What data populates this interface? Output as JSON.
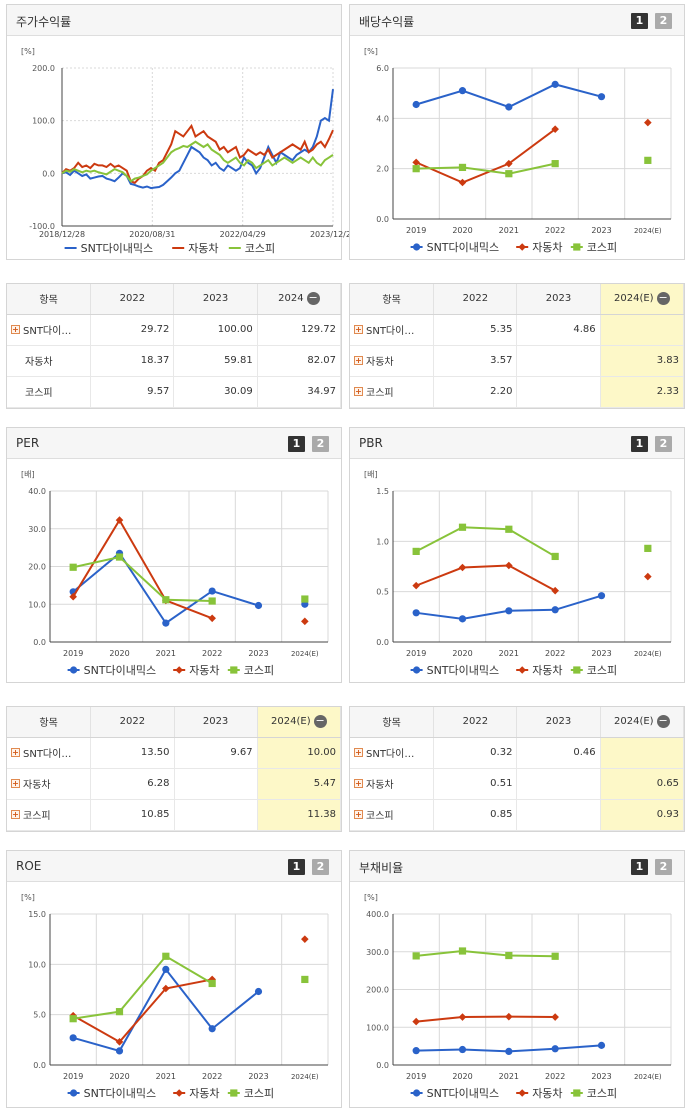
{
  "colors": {
    "snt": "#2a62c9",
    "auto": "#cc3a10",
    "kospi": "#88c33a",
    "grid": "#d9d9d9",
    "axis": "#444444"
  },
  "panels": {
    "stock_return": {
      "title": "주가수익률"
    },
    "dividend": {
      "title": "배당수익률",
      "tab1": "1",
      "tab2": "2"
    },
    "per": {
      "title": "PER",
      "tab1": "1",
      "tab2": "2"
    },
    "pbr": {
      "title": "PBR",
      "tab1": "1",
      "tab2": "2"
    },
    "roe": {
      "title": "ROE",
      "tab1": "1",
      "tab2": "2"
    },
    "debt": {
      "title": "부채비율",
      "tab1": "1",
      "tab2": "2"
    }
  },
  "tables": {
    "return_table": {
      "header_label": "항목",
      "columns": [
        "2022",
        "2023",
        "2024"
      ],
      "rows": [
        {
          "label": "SNT다이…",
          "expandable": true,
          "values": [
            "29.72",
            "100.00",
            "129.72"
          ]
        },
        {
          "label": "자동차",
          "expandable": false,
          "values": [
            "18.37",
            "59.81",
            "82.07"
          ]
        },
        {
          "label": "코스피",
          "expandable": false,
          "values": [
            "9.57",
            "30.09",
            "34.97"
          ]
        }
      ]
    },
    "dividend_table": {
      "header_label": "항목",
      "columns": [
        "2022",
        "2023",
        "2024(E)"
      ],
      "rows": [
        {
          "label": "SNT다이…",
          "expandable": true,
          "values": [
            "5.35",
            "4.86",
            ""
          ]
        },
        {
          "label": "자동차",
          "expandable": true,
          "values": [
            "3.57",
            "",
            "3.83"
          ]
        },
        {
          "label": "코스피",
          "expandable": true,
          "values": [
            "2.20",
            "",
            "2.33"
          ]
        }
      ]
    },
    "per_table": {
      "header_label": "항목",
      "columns": [
        "2022",
        "2023",
        "2024(E)"
      ],
      "rows": [
        {
          "label": "SNT다이…",
          "expandable": true,
          "values": [
            "13.50",
            "9.67",
            "10.00"
          ]
        },
        {
          "label": "자동차",
          "expandable": true,
          "values": [
            "6.28",
            "",
            "5.47"
          ]
        },
        {
          "label": "코스피",
          "expandable": true,
          "values": [
            "10.85",
            "",
            "11.38"
          ]
        }
      ]
    },
    "pbr_table": {
      "header_label": "항목",
      "columns": [
        "2022",
        "2023",
        "2024(E)"
      ],
      "rows": [
        {
          "label": "SNT다이…",
          "expandable": true,
          "values": [
            "0.32",
            "0.46",
            ""
          ]
        },
        {
          "label": "자동차",
          "expandable": true,
          "values": [
            "0.51",
            "",
            "0.65"
          ]
        },
        {
          "label": "코스피",
          "expandable": true,
          "values": [
            "0.85",
            "",
            "0.93"
          ]
        }
      ]
    }
  },
  "chart_data": [
    {
      "id": "stock_return",
      "type": "line",
      "unit": "[%]",
      "ylim": [
        -100,
        200
      ],
      "yticks": [
        "200.0",
        "100.0",
        "0.0",
        "-100.0"
      ],
      "x_tick_labels": [
        "2018/12/28",
        "2020/08/31",
        "2022/04/29",
        "2023/12/28"
      ],
      "legend": [
        "SNT다이내믹스",
        "자동차",
        "코스피"
      ],
      "series": [
        {
          "name": "SNT다이내믹스",
          "values": [
            0,
            2,
            -3,
            5,
            0,
            -5,
            -2,
            -10,
            -8,
            -6,
            -5,
            -10,
            -12,
            -15,
            -8,
            0,
            -5,
            -20,
            -22,
            -25,
            -27,
            -25,
            -28,
            -27,
            -26,
            -22,
            -15,
            -8,
            0,
            5,
            20,
            35,
            50,
            45,
            40,
            30,
            25,
            15,
            20,
            10,
            5,
            15,
            10,
            5,
            10,
            30,
            20,
            15,
            0,
            10,
            30,
            50,
            35,
            20,
            40,
            35,
            30,
            25,
            35,
            40,
            45,
            40,
            50,
            70,
            100,
            105,
            100,
            160
          ]
        },
        {
          "name": "자동차",
          "values": [
            0,
            8,
            5,
            10,
            20,
            12,
            15,
            10,
            18,
            15,
            15,
            12,
            18,
            12,
            15,
            10,
            5,
            -15,
            -18,
            -10,
            -5,
            5,
            10,
            5,
            20,
            25,
            40,
            55,
            80,
            75,
            70,
            80,
            90,
            70,
            75,
            80,
            70,
            65,
            60,
            45,
            50,
            40,
            45,
            50,
            30,
            35,
            45,
            40,
            35,
            40,
            35,
            45,
            30,
            35,
            40,
            45,
            50,
            55,
            50,
            45,
            60,
            40,
            45,
            55,
            60,
            50,
            65,
            82
          ]
        },
        {
          "name": "코스피",
          "values": [
            0,
            5,
            3,
            8,
            5,
            2,
            5,
            3,
            5,
            2,
            0,
            -2,
            3,
            8,
            5,
            2,
            -5,
            -15,
            -10,
            -8,
            -5,
            -2,
            5,
            10,
            15,
            20,
            30,
            40,
            45,
            48,
            52,
            50,
            55,
            60,
            55,
            50,
            55,
            45,
            40,
            35,
            25,
            20,
            25,
            30,
            20,
            15,
            25,
            20,
            10,
            15,
            20,
            25,
            15,
            20,
            25,
            30,
            25,
            20,
            25,
            30,
            25,
            20,
            30,
            20,
            15,
            25,
            30,
            35
          ]
        }
      ]
    },
    {
      "id": "dividend",
      "type": "line",
      "unit": "[%]",
      "ylim": [
        0,
        6
      ],
      "yticks": [
        "6.0",
        "4.0",
        "2.0",
        "0.0"
      ],
      "categories": [
        "2019",
        "2020",
        "2021",
        "2022",
        "2023",
        "2024(E)"
      ],
      "legend": [
        "SNT다이내믹스",
        "자동차",
        "코스피"
      ],
      "series": [
        {
          "name": "SNT다이내믹스",
          "values": [
            4.55,
            5.1,
            4.45,
            5.35,
            4.86,
            null
          ]
        },
        {
          "name": "자동차",
          "values": [
            2.25,
            1.45,
            2.2,
            3.57,
            null,
            3.83
          ]
        },
        {
          "name": "코스피",
          "values": [
            2.0,
            2.05,
            1.8,
            2.2,
            null,
            2.33
          ]
        }
      ]
    },
    {
      "id": "per",
      "type": "line",
      "unit": "[배]",
      "ylim": [
        0,
        40
      ],
      "yticks": [
        "40.0",
        "30.0",
        "20.0",
        "10.0",
        "0.0"
      ],
      "categories": [
        "2019",
        "2020",
        "2021",
        "2022",
        "2023",
        "2024(E)"
      ],
      "legend": [
        "SNT다이내믹스",
        "자동차",
        "코스피"
      ],
      "series": [
        {
          "name": "SNT다이내믹스",
          "values": [
            13.3,
            23.5,
            5.0,
            13.5,
            9.67,
            10.0
          ]
        },
        {
          "name": "자동차",
          "values": [
            12.0,
            32.3,
            11.0,
            6.28,
            null,
            5.47
          ]
        },
        {
          "name": "코스피",
          "values": [
            19.8,
            22.5,
            11.2,
            10.85,
            null,
            11.38
          ]
        }
      ]
    },
    {
      "id": "pbr",
      "type": "line",
      "unit": "[배]",
      "ylim": [
        0,
        1.5
      ],
      "yticks": [
        "1.5",
        "1.0",
        "0.5",
        "0.0"
      ],
      "categories": [
        "2019",
        "2020",
        "2021",
        "2022",
        "2023",
        "2024(E)"
      ],
      "legend": [
        "SNT다이내믹스",
        "자동차",
        "코스피"
      ],
      "series": [
        {
          "name": "SNT다이내믹스",
          "values": [
            0.29,
            0.23,
            0.31,
            0.32,
            0.46,
            null
          ]
        },
        {
          "name": "자동차",
          "values": [
            0.56,
            0.74,
            0.76,
            0.51,
            null,
            0.65
          ]
        },
        {
          "name": "코스피",
          "values": [
            0.9,
            1.14,
            1.12,
            0.85,
            null,
            0.93
          ]
        }
      ]
    },
    {
      "id": "roe",
      "type": "line",
      "unit": "[%]",
      "ylim": [
        0,
        15
      ],
      "yticks": [
        "15.0",
        "10.0",
        "5.0",
        "0.0"
      ],
      "categories": [
        "2019",
        "2020",
        "2021",
        "2022",
        "2023",
        "2024(E)"
      ],
      "legend": [
        "SNT다이내믹스",
        "자동차",
        "코스피"
      ],
      "series": [
        {
          "name": "SNT다이내믹스",
          "values": [
            2.7,
            1.4,
            9.5,
            3.6,
            7.3,
            null
          ]
        },
        {
          "name": "자동차",
          "values": [
            4.9,
            2.3,
            7.6,
            8.5,
            null,
            12.5
          ]
        },
        {
          "name": "코스피",
          "values": [
            4.6,
            5.3,
            10.8,
            8.1,
            null,
            8.5
          ]
        }
      ]
    },
    {
      "id": "debt",
      "type": "line",
      "unit": "[%]",
      "ylim": [
        0,
        400
      ],
      "yticks": [
        "400.0",
        "300.0",
        "200.0",
        "100.0",
        "0.0"
      ],
      "categories": [
        "2019",
        "2020",
        "2021",
        "2022",
        "2023",
        "2024(E)"
      ],
      "legend": [
        "SNT다이내믹스",
        "자동차",
        "코스피"
      ],
      "series": [
        {
          "name": "SNT다이내믹스",
          "values": [
            38,
            41,
            36,
            43,
            52,
            null
          ]
        },
        {
          "name": "자동차",
          "values": [
            115,
            127,
            128,
            127,
            null,
            null
          ]
        },
        {
          "name": "코스피",
          "values": [
            289,
            302,
            290,
            288,
            null,
            null
          ]
        }
      ]
    }
  ]
}
